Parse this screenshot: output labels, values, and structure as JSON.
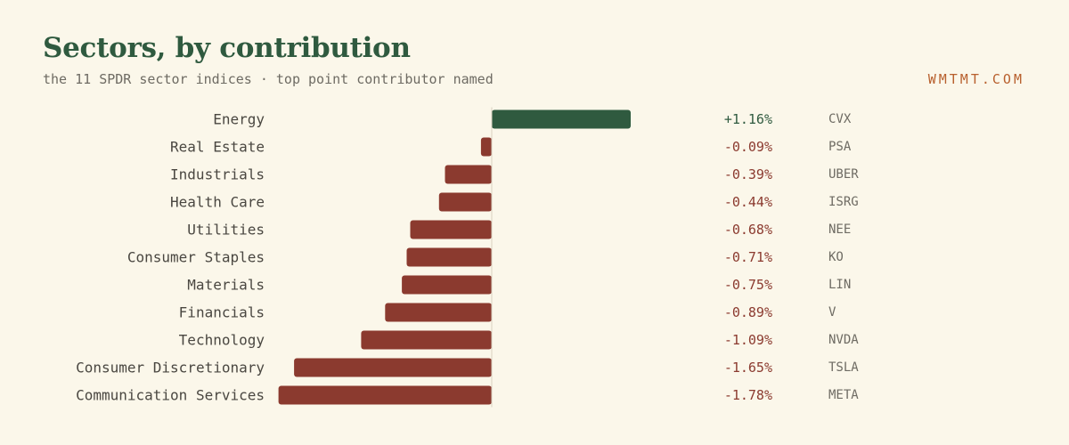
{
  "header": {
    "title": "Sectors, by contribution",
    "subtitle": "the 11 SPDR sector indices · top point contributor named",
    "brand": "WMTMT.COM"
  },
  "colors": {
    "positive": "#2f5a3f",
    "negative": "#8b3a2f",
    "background": "#fbf7ea",
    "axis": "#d8d2c0"
  },
  "chart_data": {
    "type": "bar",
    "orientation": "horizontal",
    "title": "Sectors, by contribution",
    "subtitle": "the 11 SPDR sector indices · top point contributor named",
    "categories": [
      "Energy",
      "Real Estate",
      "Industrials",
      "Health Care",
      "Utilities",
      "Consumer Staples",
      "Materials",
      "Financials",
      "Technology",
      "Consumer Discretionary",
      "Communication Services"
    ],
    "values": [
      1.16,
      -0.09,
      -0.39,
      -0.44,
      -0.68,
      -0.71,
      -0.75,
      -0.89,
      -1.09,
      -1.65,
      -1.78
    ],
    "value_labels": [
      "+1.16%",
      "-0.09%",
      "-0.39%",
      "-0.44%",
      "-0.68%",
      "-0.71%",
      "-0.75%",
      "-0.89%",
      "-1.09%",
      "-1.65%",
      "-1.78%"
    ],
    "top_contributors": [
      "CVX",
      "PSA",
      "UBER",
      "ISRG",
      "NEE",
      "KO",
      "LIN",
      "V",
      "NVDA",
      "TSLA",
      "META"
    ],
    "unit": "%",
    "xlim": [
      -1.78,
      1.16
    ],
    "grid": false,
    "legend": "none"
  }
}
